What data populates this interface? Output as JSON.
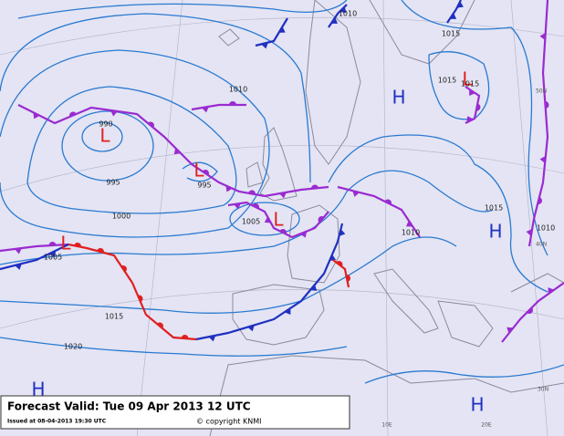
{
  "footer": {
    "title": "Forecast Valid:  Tue 09 Apr 2013  12 UTC",
    "issued": "Issued at 08-04-2013  19:30 UTC",
    "copyright": "© copyright KNMI"
  },
  "centers": [
    "L",
    "L",
    "L",
    "L",
    "L",
    "H",
    "H",
    "H",
    "H"
  ],
  "isobar_labels": [
    "990",
    "995",
    "995",
    "1000",
    "1005",
    "1005",
    "1010",
    "1010",
    "1010",
    "1010",
    "1015",
    "1015",
    "1015",
    "1015",
    "1015",
    "1020"
  ],
  "grid_labels": [
    "50N",
    "40N",
    "30N",
    "10E",
    "20E"
  ]
}
